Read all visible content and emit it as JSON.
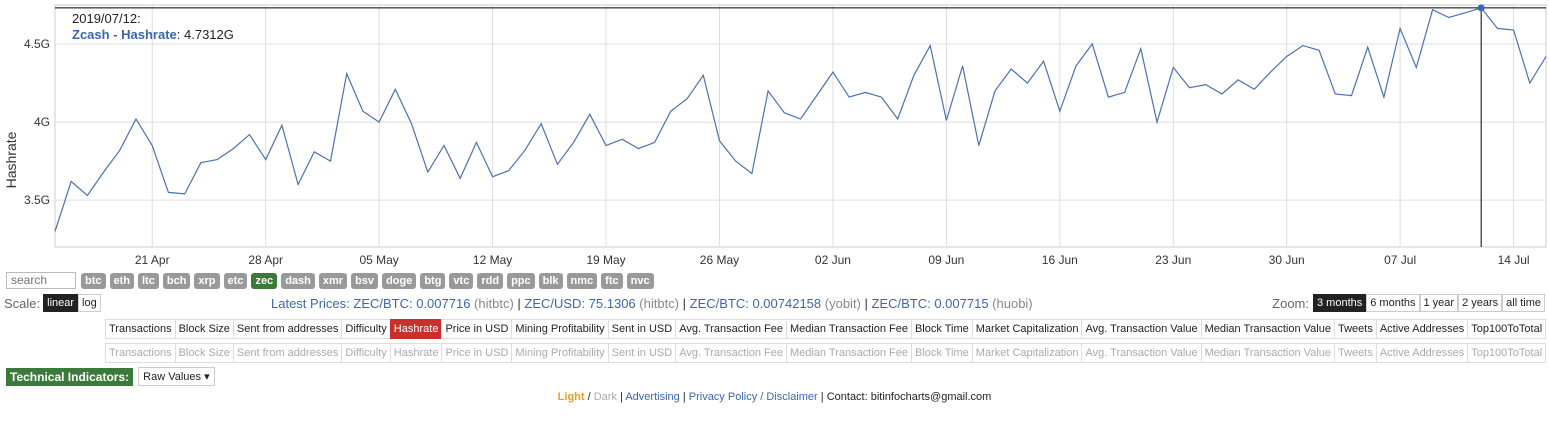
{
  "tooltip": {
    "date": "2019/07/12:",
    "series_label": "Zcash - Hashrate",
    "value": "4.7312G"
  },
  "chart_data": {
    "type": "line",
    "ylabel": "Hashrate",
    "ylim": [
      3.2,
      4.75
    ],
    "yticks": [
      {
        "v": 3.5,
        "label": "3.5G"
      },
      {
        "v": 4.0,
        "label": "4G"
      },
      {
        "v": 4.5,
        "label": "4.5G"
      }
    ],
    "xticks": [
      {
        "date": "2019-04-21",
        "label": "21 Apr"
      },
      {
        "date": "2019-04-28",
        "label": "28 Apr"
      },
      {
        "date": "2019-05-05",
        "label": "05 May"
      },
      {
        "date": "2019-05-12",
        "label": "12 May"
      },
      {
        "date": "2019-05-19",
        "label": "19 May"
      },
      {
        "date": "2019-05-26",
        "label": "26 May"
      },
      {
        "date": "2019-06-02",
        "label": "02 Jun"
      },
      {
        "date": "2019-06-09",
        "label": "09 Jun"
      },
      {
        "date": "2019-06-16",
        "label": "16 Jun"
      },
      {
        "date": "2019-06-23",
        "label": "23 Jun"
      },
      {
        "date": "2019-06-30",
        "label": "30 Jun"
      },
      {
        "date": "2019-07-07",
        "label": "07 Jul"
      },
      {
        "date": "2019-07-14",
        "label": "14 Jul"
      }
    ],
    "x_start": "2019-04-15",
    "x_end": "2019-07-16",
    "highlight": {
      "date": "2019-07-12",
      "value": 4.7312
    },
    "series": [
      {
        "color": "#4a72b0",
        "points": [
          [
            "2019-04-15",
            3.3
          ],
          [
            "2019-04-16",
            3.62
          ],
          [
            "2019-04-17",
            3.53
          ],
          [
            "2019-04-18",
            3.68
          ],
          [
            "2019-04-19",
            3.82
          ],
          [
            "2019-04-20",
            4.02
          ],
          [
            "2019-04-21",
            3.85
          ],
          [
            "2019-04-22",
            3.55
          ],
          [
            "2019-04-23",
            3.54
          ],
          [
            "2019-04-24",
            3.74
          ],
          [
            "2019-04-25",
            3.76
          ],
          [
            "2019-04-26",
            3.83
          ],
          [
            "2019-04-27",
            3.92
          ],
          [
            "2019-04-28",
            3.76
          ],
          [
            "2019-04-29",
            3.98
          ],
          [
            "2019-04-30",
            3.6
          ],
          [
            "2019-05-01",
            3.81
          ],
          [
            "2019-05-02",
            3.75
          ],
          [
            "2019-05-03",
            4.31
          ],
          [
            "2019-05-04",
            4.07
          ],
          [
            "2019-05-05",
            4.0
          ],
          [
            "2019-05-06",
            4.21
          ],
          [
            "2019-05-07",
            3.99
          ],
          [
            "2019-05-08",
            3.68
          ],
          [
            "2019-05-09",
            3.85
          ],
          [
            "2019-05-10",
            3.64
          ],
          [
            "2019-05-11",
            3.87
          ],
          [
            "2019-05-12",
            3.65
          ],
          [
            "2019-05-13",
            3.69
          ],
          [
            "2019-05-14",
            3.82
          ],
          [
            "2019-05-15",
            3.99
          ],
          [
            "2019-05-16",
            3.73
          ],
          [
            "2019-05-17",
            3.87
          ],
          [
            "2019-05-18",
            4.05
          ],
          [
            "2019-05-19",
            3.85
          ],
          [
            "2019-05-20",
            3.89
          ],
          [
            "2019-05-21",
            3.83
          ],
          [
            "2019-05-22",
            3.87
          ],
          [
            "2019-05-23",
            4.07
          ],
          [
            "2019-05-24",
            4.15
          ],
          [
            "2019-05-25",
            4.3
          ],
          [
            "2019-05-26",
            3.88
          ],
          [
            "2019-05-27",
            3.75
          ],
          [
            "2019-05-28",
            3.67
          ],
          [
            "2019-05-29",
            4.2
          ],
          [
            "2019-05-30",
            4.06
          ],
          [
            "2019-05-31",
            4.02
          ],
          [
            "2019-06-01",
            4.17
          ],
          [
            "2019-06-02",
            4.32
          ],
          [
            "2019-06-03",
            4.16
          ],
          [
            "2019-06-04",
            4.19
          ],
          [
            "2019-06-05",
            4.16
          ],
          [
            "2019-06-06",
            4.02
          ],
          [
            "2019-06-07",
            4.3
          ],
          [
            "2019-06-08",
            4.49
          ],
          [
            "2019-06-09",
            4.01
          ],
          [
            "2019-06-10",
            4.36
          ],
          [
            "2019-06-11",
            3.85
          ],
          [
            "2019-06-12",
            4.2
          ],
          [
            "2019-06-13",
            4.34
          ],
          [
            "2019-06-14",
            4.25
          ],
          [
            "2019-06-15",
            4.39
          ],
          [
            "2019-06-16",
            4.07
          ],
          [
            "2019-06-17",
            4.36
          ],
          [
            "2019-06-18",
            4.5
          ],
          [
            "2019-06-19",
            4.16
          ],
          [
            "2019-06-20",
            4.19
          ],
          [
            "2019-06-21",
            4.47
          ],
          [
            "2019-06-22",
            4.0
          ],
          [
            "2019-06-23",
            4.35
          ],
          [
            "2019-06-24",
            4.22
          ],
          [
            "2019-06-25",
            4.24
          ],
          [
            "2019-06-26",
            4.18
          ],
          [
            "2019-06-27",
            4.27
          ],
          [
            "2019-06-28",
            4.21
          ],
          [
            "2019-06-29",
            4.32
          ],
          [
            "2019-06-30",
            4.42
          ],
          [
            "2019-07-01",
            4.49
          ],
          [
            "2019-07-02",
            4.46
          ],
          [
            "2019-07-03",
            4.18
          ],
          [
            "2019-07-04",
            4.17
          ],
          [
            "2019-07-05",
            4.48
          ],
          [
            "2019-07-06",
            4.16
          ],
          [
            "2019-07-07",
            4.6
          ],
          [
            "2019-07-08",
            4.35
          ],
          [
            "2019-07-09",
            4.72
          ],
          [
            "2019-07-10",
            4.67
          ],
          [
            "2019-07-11",
            4.7
          ],
          [
            "2019-07-12",
            4.7312
          ],
          [
            "2019-07-13",
            4.6
          ],
          [
            "2019-07-14",
            4.59
          ],
          [
            "2019-07-15",
            4.25
          ],
          [
            "2019-07-16",
            4.42
          ]
        ]
      }
    ]
  },
  "search": {
    "placeholder": "search"
  },
  "coins": [
    {
      "label": "btc",
      "active": false
    },
    {
      "label": "eth",
      "active": false
    },
    {
      "label": "ltc",
      "active": false
    },
    {
      "label": "bch",
      "active": false
    },
    {
      "label": "xrp",
      "active": false
    },
    {
      "label": "etc",
      "active": false
    },
    {
      "label": "zec",
      "active": true
    },
    {
      "label": "dash",
      "active": false
    },
    {
      "label": "xmr",
      "active": false
    },
    {
      "label": "bsv",
      "active": false
    },
    {
      "label": "doge",
      "active": false
    },
    {
      "label": "btg",
      "active": false
    },
    {
      "label": "vtc",
      "active": false
    },
    {
      "label": "rdd",
      "active": false
    },
    {
      "label": "ppc",
      "active": false
    },
    {
      "label": "blk",
      "active": false
    },
    {
      "label": "nmc",
      "active": false
    },
    {
      "label": "ftc",
      "active": false
    },
    {
      "label": "nvc",
      "active": false
    }
  ],
  "scale": {
    "label": "Scale:",
    "linear": "linear",
    "log": "log"
  },
  "prices": {
    "title": "Latest Prices: ",
    "items": [
      {
        "text": "ZEC/BTC: 0.007716",
        "src": " (hitbtc)"
      },
      {
        "text": "ZEC/USD: 75.1306",
        "src": " (hitbtc)"
      },
      {
        "text": "ZEC/BTC: 0.00742158",
        "src": " (yobit)"
      },
      {
        "text": "ZEC/BTC: 0.007715",
        "src": " (huobi)"
      }
    ],
    "sep": " | "
  },
  "zoom": {
    "label": "Zoom: ",
    "options": [
      {
        "label": "3 months",
        "active": true
      },
      {
        "label": "6 months",
        "active": false
      },
      {
        "label": "1 year",
        "active": false
      },
      {
        "label": "2 years",
        "active": false
      },
      {
        "label": "all time",
        "active": false
      }
    ]
  },
  "metrics": [
    "Transactions",
    "Block Size",
    "Sent from addresses",
    "Difficulty",
    "Hashrate",
    "Price in USD",
    "Mining Profitability",
    "Sent in USD",
    "Avg. Transaction Fee",
    "Median Transaction Fee",
    "Block Time",
    "Market Capitalization",
    "Avg. Transaction Value",
    "Median Transaction Value",
    "Tweets",
    "Active Addresses",
    "Top100ToTotal"
  ],
  "selected_metric": "Hashrate",
  "tech": {
    "label": "Technical Indicators:",
    "dropdown": "Raw Values ▾"
  },
  "footer": {
    "light": "Light",
    "slash": " / ",
    "dark": "Dark",
    "bar": " | ",
    "advertising": "Advertising",
    "privacy": "Privacy Policy / Disclaimer",
    "contact": "Contact: bitinfocharts@gmail.com"
  }
}
